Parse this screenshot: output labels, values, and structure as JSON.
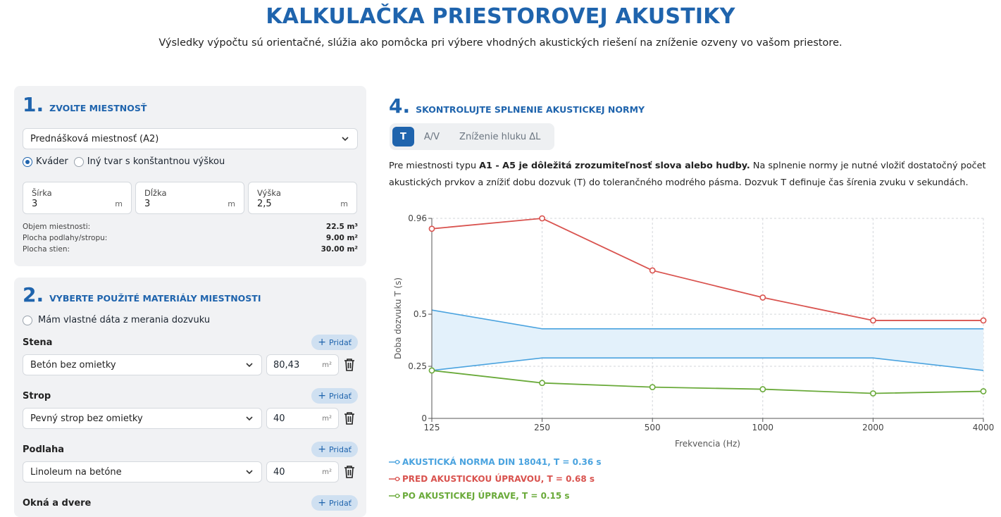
{
  "header": {
    "title": "KALKULAČKA PRIESTOROVEJ AKUSTIKY",
    "subtitle": "Výsledky výpočtu sú orientačné, slúžia ako pomôcka pri výbere vhodných akustických riešení na zníženie ozveny vo vašom priestore."
  },
  "room": {
    "number": "1.",
    "title": "ZVOĽTE MIESTNOSŤ",
    "room_type": "Prednášková miestnosť (A2)",
    "shape_options": [
      "Kváder",
      "Iný tvar s konštantnou výškou"
    ],
    "dims": [
      {
        "label": "Šírka",
        "value": "3",
        "unit": "m"
      },
      {
        "label": "Dĺžka",
        "value": "3",
        "unit": "m"
      },
      {
        "label": "Výška",
        "value": "2,5",
        "unit": "m"
      }
    ],
    "stats": [
      {
        "label": "Objem miestnosti:",
        "value": "22.5 m³"
      },
      {
        "label": "Plocha podlahy/stropu:",
        "value": "9.00 m²"
      },
      {
        "label": "Plocha stien:",
        "value": "30.00 m²"
      }
    ]
  },
  "materials": {
    "number": "2.",
    "title": "VYBERTE POUŽITÉ MATERIÁLY MIESTNOSTI",
    "own_data_label": "Mám vlastné dáta z merania dozvuku",
    "add_label": "Pridať",
    "groups": [
      {
        "label": "Stena",
        "material": "Betón bez omietky",
        "area": "80,43",
        "unit": "m²"
      },
      {
        "label": "Strop",
        "material": "Pevný strop bez omietky",
        "area": "40",
        "unit": "m²"
      },
      {
        "label": "Podlaha",
        "material": "Linoleum na betóne",
        "area": "40",
        "unit": "m²"
      },
      {
        "label": "Okná a dvere"
      }
    ]
  },
  "check": {
    "number": "4.",
    "title": "SKONTROLUJTE SPLNENIE AKUSTICKEJ NORMY",
    "tabs": [
      "T",
      "A/V",
      "Zníženie hluku ΔL"
    ],
    "desc_pre": "Pre miestnosti typu",
    "desc_bold": "A1 - A5 je dôležitá zrozumiteľnosť slova alebo hudby.",
    "desc_post": "Na splnenie normy je nutné vložiť dostatočný počet akustických prvkov a znížiť dobu dozvuk (T) do tolerančného modrého pásma. Dozvuk T definuje čas šírenia zvuku v sekundách."
  },
  "chart_data": {
    "type": "line",
    "xlabel": "Frekvencia (Hz)",
    "ylabel": "Doba dozvuku T (s)",
    "x": [
      125,
      250,
      500,
      1000,
      2000,
      4000
    ],
    "ylim": [
      0,
      0.96
    ],
    "yticks": [
      "0",
      "0.25",
      "0.5",
      "0.96"
    ],
    "grid": true,
    "tolerance_band": {
      "upper": [
        0.52,
        0.43,
        0.43,
        0.43,
        0.43,
        0.43
      ],
      "lower": [
        0.23,
        0.29,
        0.29,
        0.29,
        0.29,
        0.23
      ],
      "color": "#4aa3df"
    },
    "series": [
      {
        "name": "PRED AKUSTICKOU ÚPRAVOU, T = 0.68 s",
        "values": [
          0.91,
          0.96,
          0.71,
          0.58,
          0.47,
          0.47
        ],
        "color": "#d9534f"
      },
      {
        "name": "PO AKUSTICKEJ ÚPRAVE, T = 0.15 s",
        "values": [
          0.23,
          0.17,
          0.15,
          0.14,
          0.12,
          0.13
        ],
        "color": "#6aaa3a"
      }
    ],
    "legend": [
      {
        "text": "AKUSTICKÁ NORMA DIN 18041, T = 0.36 s",
        "color": "#4aa3df"
      },
      {
        "text": "PRED AKUSTICKOU ÚPRAVOU, T = 0.68 s",
        "color": "#d9534f"
      },
      {
        "text": "PO AKUSTICKEJ ÚPRAVE, T = 0.15 s",
        "color": "#6aaa3a"
      }
    ],
    "legend_position": "bottom-left"
  }
}
